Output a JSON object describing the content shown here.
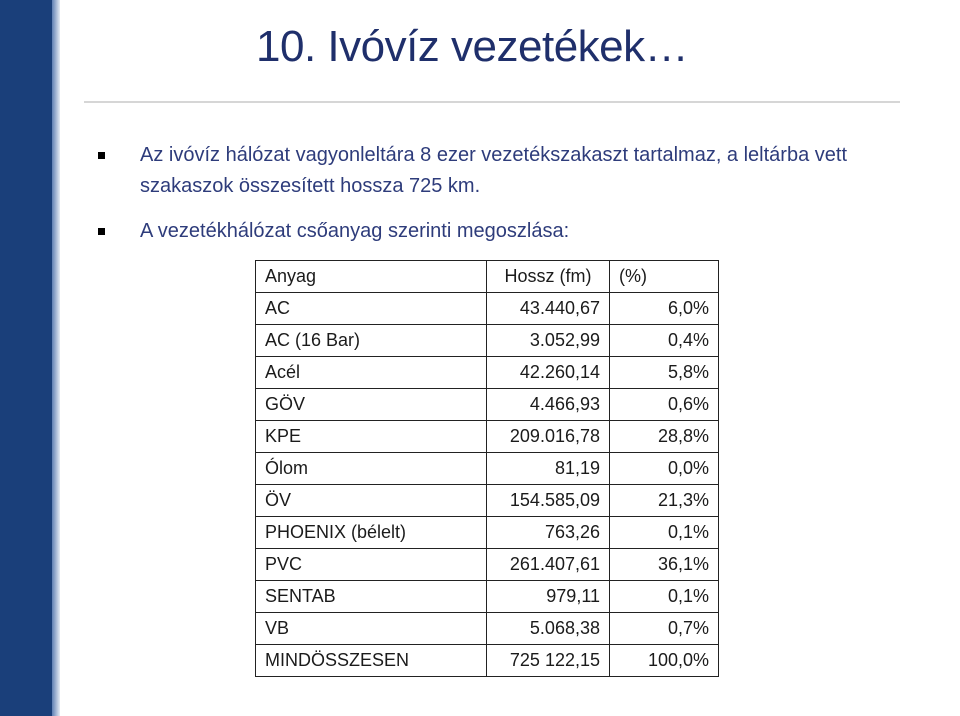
{
  "slide": {
    "title": "10. Ivóvíz vezetékek…",
    "bullets": [
      {
        "text": "Az ivóvíz hálózat vagyonleltára 8 ezer vezetékszakaszt tartalmaz, a leltárba vett szakaszok összesített hossza 725 km."
      },
      {
        "text": "A vezetékhálózat csőanyag szerinti megoszlása:"
      }
    ]
  },
  "table": {
    "headers": [
      "Anyag",
      "Hossz (fm)",
      "(%)"
    ],
    "rows": [
      [
        "AC",
        "43.440,67",
        "6,0%"
      ],
      [
        "AC (16 Bar)",
        "3.052,99",
        "0,4%"
      ],
      [
        "Acél",
        "42.260,14",
        "5,8%"
      ],
      [
        "GÖV",
        "4.466,93",
        "0,6%"
      ],
      [
        "KPE",
        "209.016,78",
        "28,8%"
      ],
      [
        "Ólom",
        "81,19",
        "0,0%"
      ],
      [
        "ÖV",
        "154.585,09",
        "21,3%"
      ],
      [
        "PHOENIX (bélelt)",
        "763,26",
        "0,1%"
      ],
      [
        "PVC",
        "261.407,61",
        "36,1%"
      ],
      [
        "SENTAB",
        "979,11",
        "0,1%"
      ],
      [
        "VB",
        "5.068,38",
        "0,7%"
      ],
      [
        "MINDÖSSZESEN",
        "725 122,15",
        "100,0%"
      ]
    ]
  }
}
